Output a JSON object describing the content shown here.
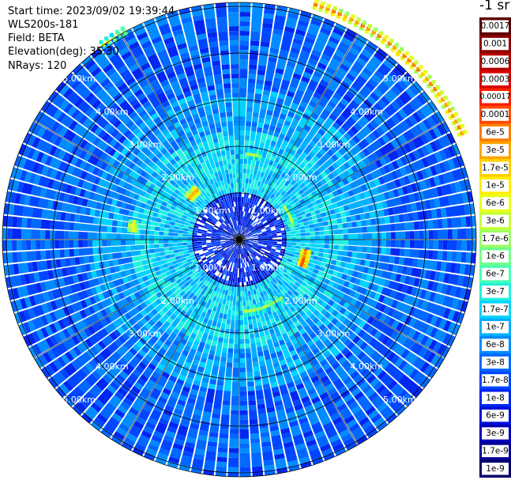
{
  "header": {
    "start_time": "Start time: 2023/09/02 19:39:44",
    "instrument": "WLS200s-181",
    "field": "Field: BETA",
    "elevation": "Elevation(deg): 35.30",
    "nrays": "NRays: 120"
  },
  "chart_data": {
    "type": "heatmap",
    "projection": "polar-ppi",
    "field": "BETA",
    "elevation_deg": 35.3,
    "n_rays": 120,
    "grid": true,
    "range_rings_km": [
      1,
      2,
      3,
      4,
      5
    ],
    "range_labels": [
      "1.00km",
      "2.00km",
      "3.00km",
      "4.00km",
      "5.00km"
    ],
    "colorbar": {
      "title": "-1 sr",
      "placement": "right",
      "labels": [
        "0.0017",
        "0.001",
        "0.0006",
        "0.0003",
        "0.00017",
        "0.0001",
        "6e-5",
        "3e-5",
        "1.7e-5",
        "1e-5",
        "6e-6",
        "3e-6",
        "1.7e-6",
        "1e-6",
        "6e-7",
        "3e-7",
        "1.7e-7",
        "1e-7",
        "6e-8",
        "3e-8",
        "1.7e-8",
        "1e-8",
        "6e-9",
        "3e-9",
        "1.7e-9",
        "1e-9"
      ],
      "colors": [
        "#5a0000",
        "#8b0000",
        "#b40000",
        "#d80000",
        "#ff1e00",
        "#ff4a00",
        "#ff7a00",
        "#ffa500",
        "#ffd000",
        "#ffee00",
        "#e8ff1a",
        "#c6ff3a",
        "#9cff62",
        "#72ff8a",
        "#4affb4",
        "#24f0de",
        "#00d4ff",
        "#00b0ff",
        "#008cff",
        "#0068ff",
        "#0046ff",
        "#0026f0",
        "#0010d8",
        "#0000b8",
        "#000096",
        "#000068"
      ]
    },
    "features": [
      {
        "name": "aerosol arc NE",
        "range_km": 5.3,
        "azimuth_deg": [
          18,
          65
        ],
        "value": "3e-5"
      },
      {
        "name": "aerosol arc NNW",
        "range_km": 5.1,
        "azimuth_deg": [
          -35,
          -28
        ],
        "value": "3e-6"
      },
      {
        "name": "echo N",
        "range_km": 1.85,
        "azimuth_deg": [
          5,
          15
        ],
        "value": "1e-4"
      },
      {
        "name": "echo NE",
        "range_km": 1.2,
        "azimuth_deg": [
          55,
          75
        ],
        "value": "1e-4"
      },
      {
        "name": "echo E",
        "range_km": 1.45,
        "azimuth_deg": [
          100,
          112
        ],
        "value": "6e-5"
      },
      {
        "name": "echo S",
        "range_km": 1.55,
        "azimuth_deg": [
          145,
          175
        ],
        "value": "1e-4"
      },
      {
        "name": "echo NW",
        "range_km": 1.4,
        "azimuth_deg": [
          -50,
          -40
        ],
        "value": "3e-5"
      },
      {
        "name": "echo W",
        "range_km": 2.3,
        "azimuth_deg": [
          -85,
          -80
        ],
        "value": "1e-5"
      }
    ]
  }
}
